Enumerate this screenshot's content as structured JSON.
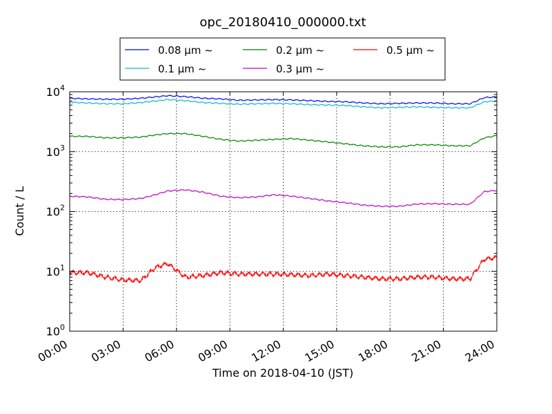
{
  "chart_data": {
    "type": "line",
    "title": "opc_20180410_000000.txt",
    "xlabel": "Time on 2018-04-10 (JST)",
    "ylabel": "Count / L",
    "xscale": "linear",
    "yscale": "log",
    "xlim": [
      0,
      24
    ],
    "ylim": [
      1,
      10000
    ],
    "x_tick_values": [
      0,
      3,
      6,
      9,
      12,
      15,
      18,
      21,
      24
    ],
    "x_tick_labels": [
      "00:00",
      "03:00",
      "06:00",
      "09:00",
      "12:00",
      "15:00",
      "18:00",
      "21:00",
      "24:00"
    ],
    "y_tick_values": [
      1,
      10,
      100,
      1000,
      10000
    ],
    "y_tick_base": "10",
    "y_tick_exponents": [
      "0",
      "1",
      "2",
      "3",
      "4"
    ],
    "grid": true,
    "legend_position": "top-center",
    "x": [
      0,
      1,
      2,
      3,
      4,
      4.8,
      5.5,
      6.5,
      7.5,
      8.5,
      9.5,
      10.5,
      11.5,
      12.5,
      13.5,
      14.5,
      15.5,
      16.5,
      17.5,
      18.5,
      19.5,
      20.5,
      21.5,
      22.5,
      23.3,
      24
    ],
    "series": [
      {
        "name": "0.08 µm ~",
        "color": "#0000ff",
        "values": [
          7800,
          7600,
          7500,
          7500,
          7800,
          8200,
          8600,
          8300,
          7800,
          7600,
          7200,
          7300,
          7400,
          7300,
          7100,
          6900,
          6800,
          6500,
          6300,
          6400,
          6500,
          6500,
          6300,
          6300,
          8000,
          8200
        ]
      },
      {
        "name": "0.1 µm ~",
        "color": "#00bfbf",
        "values": [
          6700,
          6500,
          6300,
          6300,
          6600,
          7000,
          7400,
          7100,
          6600,
          6400,
          6200,
          6300,
          6400,
          6300,
          6100,
          6000,
          5900,
          5600,
          5400,
          5500,
          5600,
          5500,
          5400,
          5400,
          6800,
          7000
        ]
      },
      {
        "name": "0.2 µm ~",
        "color": "#008000",
        "values": [
          1800,
          1800,
          1700,
          1700,
          1750,
          1900,
          2000,
          2000,
          1800,
          1600,
          1500,
          1550,
          1600,
          1650,
          1550,
          1450,
          1350,
          1250,
          1200,
          1200,
          1300,
          1300,
          1250,
          1250,
          1700,
          1850
        ]
      },
      {
        "name": "0.3 µm ~",
        "color": "#bf00bf",
        "values": [
          180,
          175,
          160,
          158,
          165,
          190,
          220,
          230,
          210,
          180,
          170,
          175,
          190,
          180,
          165,
          150,
          140,
          128,
          122,
          122,
          133,
          135,
          132,
          132,
          215,
          225
        ]
      },
      {
        "name": "0.5 µm ~",
        "color": "#ff0000",
        "values": [
          9.5,
          9.5,
          8.0,
          7.2,
          7.0,
          11.5,
          13.5,
          8.0,
          8.5,
          9.5,
          9.0,
          9.0,
          9.0,
          8.8,
          8.5,
          9.0,
          8.5,
          8.0,
          7.5,
          7.5,
          8.0,
          8.0,
          7.5,
          7.5,
          16.0,
          17.0
        ]
      }
    ]
  }
}
